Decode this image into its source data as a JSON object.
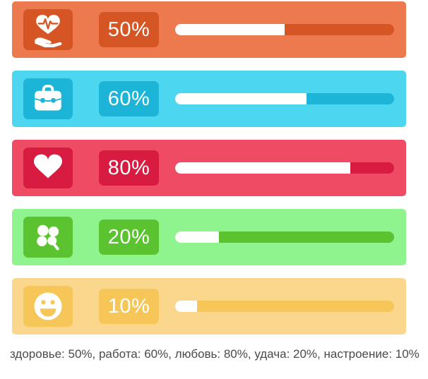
{
  "page": {
    "background": "#ffffff",
    "fill_color": "#ffffff",
    "text_color": "#4a4a4a"
  },
  "rows": [
    {
      "id": "health",
      "label": "здоровье",
      "icon": "health-hand-heart-icon",
      "percent": 50,
      "percent_label": "50%",
      "bg": "#ED7A4F",
      "accent": "#D55524"
    },
    {
      "id": "work",
      "label": "работа",
      "icon": "briefcase-icon",
      "percent": 60,
      "percent_label": "60%",
      "bg": "#4DD6F0",
      "accent": "#1CB5D8"
    },
    {
      "id": "love",
      "label": "любовь",
      "icon": "heart-icon",
      "percent": 80,
      "percent_label": "80%",
      "bg": "#F04B64",
      "accent": "#D81B40"
    },
    {
      "id": "luck",
      "label": "удача",
      "icon": "clover-icon",
      "percent": 20,
      "percent_label": "20%",
      "bg": "#90F48E",
      "accent": "#5BC32F"
    },
    {
      "id": "mood",
      "label": "настроение",
      "icon": "smiley-icon",
      "percent": 10,
      "percent_label": "10%",
      "bg": "#FAD78C",
      "accent": "#F6C658"
    }
  ],
  "summary": {
    "text": "здоровье: 50%, работа: 60%, любовь: 80%, удача: 20%, настроение: 10%"
  }
}
